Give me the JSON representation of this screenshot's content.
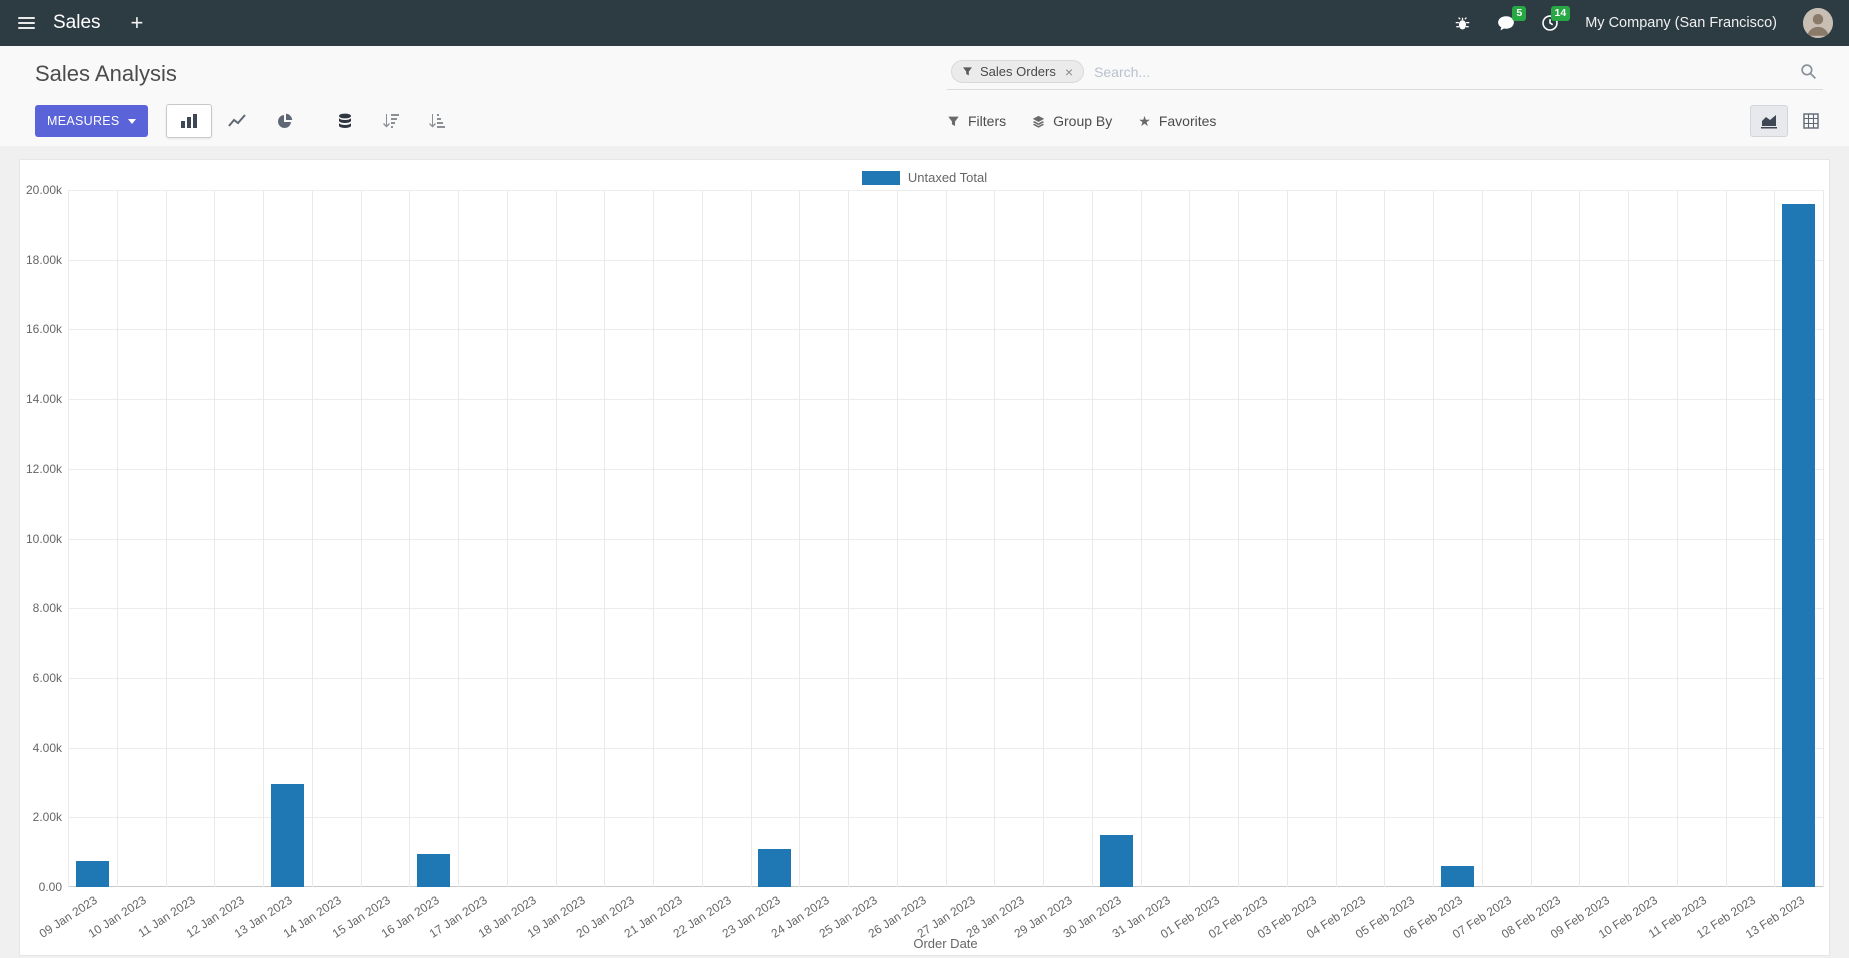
{
  "navbar": {
    "app_title": "Sales",
    "plus_label": "+",
    "messages_badge": "5",
    "activities_badge": "14",
    "company": "My Company (San Francisco)"
  },
  "control_panel": {
    "breadcrumb": "Sales Analysis",
    "search": {
      "facet": "Sales Orders",
      "facet_remove": "×",
      "placeholder": "Search..."
    },
    "measures_label": "MEASURES",
    "filters_label": "Filters",
    "group_by_label": "Group By",
    "favorites_label": "Favorites"
  },
  "icons": {
    "star": "★",
    "hamburger": "menu",
    "search": "magnifier",
    "filter": "funnel"
  },
  "colors": {
    "accent": "#5a63d8",
    "bar": "#1f77b4",
    "badge": "#28a745",
    "navbar_bg": "#2d3b43"
  },
  "chart_data": {
    "type": "bar",
    "title": "",
    "legend_position": "top",
    "grid": true,
    "xlabel": "Order Date",
    "ylabel": "",
    "ylim": [
      0,
      20000
    ],
    "y_ticks": [
      "0.00",
      "2.00k",
      "4.00k",
      "6.00k",
      "8.00k",
      "10.00k",
      "12.00k",
      "14.00k",
      "16.00k",
      "18.00k",
      "20.00k"
    ],
    "bar_color": "#1f77b4",
    "categories": [
      "09 Jan 2023",
      "10 Jan 2023",
      "11 Jan 2023",
      "12 Jan 2023",
      "13 Jan 2023",
      "14 Jan 2023",
      "15 Jan 2023",
      "16 Jan 2023",
      "17 Jan 2023",
      "18 Jan 2023",
      "19 Jan 2023",
      "20 Jan 2023",
      "21 Jan 2023",
      "22 Jan 2023",
      "23 Jan 2023",
      "24 Jan 2023",
      "25 Jan 2023",
      "26 Jan 2023",
      "27 Jan 2023",
      "28 Jan 2023",
      "29 Jan 2023",
      "30 Jan 2023",
      "31 Jan 2023",
      "01 Feb 2023",
      "02 Feb 2023",
      "03 Feb 2023",
      "04 Feb 2023",
      "05 Feb 2023",
      "06 Feb 2023",
      "07 Feb 2023",
      "08 Feb 2023",
      "09 Feb 2023",
      "10 Feb 2023",
      "11 Feb 2023",
      "12 Feb 2023",
      "13 Feb 2023"
    ],
    "series": [
      {
        "name": "Untaxed Total",
        "values": [
          750,
          0,
          0,
          0,
          2950,
          0,
          0,
          950,
          0,
          0,
          0,
          0,
          0,
          0,
          1100,
          0,
          0,
          0,
          0,
          0,
          0,
          1500,
          0,
          0,
          0,
          0,
          0,
          0,
          600,
          0,
          0,
          0,
          0,
          0,
          0,
          19600
        ]
      }
    ]
  }
}
